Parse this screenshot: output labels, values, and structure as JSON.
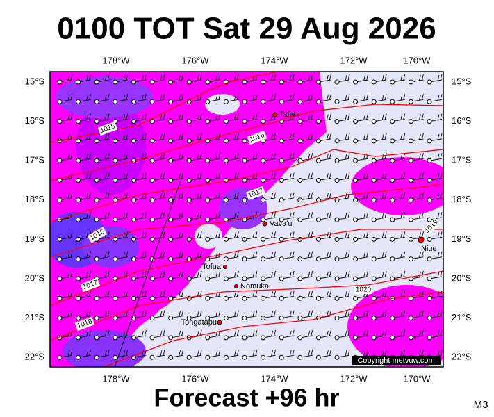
{
  "header": {
    "title": "0100 TOT Sat 29 Aug 2026"
  },
  "axes": {
    "lon_labels": [
      "178°W",
      "176°W",
      "174°W",
      "172°W",
      "170°W"
    ],
    "lat_labels": [
      "15°S",
      "16°S",
      "17°S",
      "18°S",
      "19°S",
      "20°S",
      "21°S",
      "22°S"
    ]
  },
  "isobars": [
    "1015",
    "1016",
    "1016",
    "1017",
    "1017",
    "1018",
    "1019",
    "1020"
  ],
  "places": [
    "Tafahi",
    "Vava'u",
    "Niue",
    "Tofua",
    "Nomuka",
    "Tongatapu"
  ],
  "copyright": "Copyright metvuw.com",
  "footer": {
    "forecast": "Forecast +96 hr",
    "code": "M3"
  }
}
